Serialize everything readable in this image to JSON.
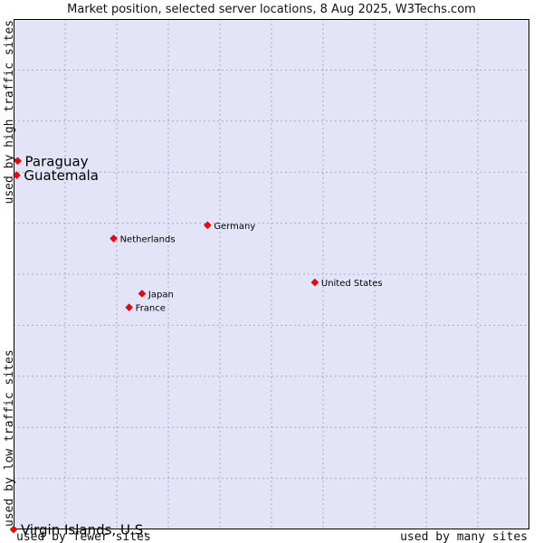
{
  "chart_data": {
    "type": "scatter",
    "title": "Market position, selected server locations, 8 Aug 2025, W3Techs.com",
    "xlabel_left": "used by fewer sites",
    "xlabel_right": "used by many sites",
    "ylabel_bottom": "used by low traffic sites",
    "ylabel_top": "used by high traffic sites",
    "xlim": [
      0,
      100
    ],
    "ylim": [
      0,
      100
    ],
    "grid": true,
    "colors": {
      "plot_background": "#e4e4f8",
      "grid": "#a8a8c4",
      "border": "#000000",
      "point": "#ff0000",
      "point_outline": "#990000"
    },
    "points": [
      {
        "label": "Paraguay",
        "x": 0.8,
        "y": 72.2,
        "emphasis": true
      },
      {
        "label": "Guatemala",
        "x": 0.6,
        "y": 69.4,
        "emphasis": true
      },
      {
        "label": "Germany",
        "x": 37.6,
        "y": 59.6,
        "emphasis": false
      },
      {
        "label": "Netherlands",
        "x": 19.4,
        "y": 57.0,
        "emphasis": false
      },
      {
        "label": "United States",
        "x": 58.4,
        "y": 48.4,
        "emphasis": false
      },
      {
        "label": "Japan",
        "x": 24.9,
        "y": 46.2,
        "emphasis": false
      },
      {
        "label": "France",
        "x": 22.4,
        "y": 43.5,
        "emphasis": false
      },
      {
        "label": "Virgin Islands, U.S.",
        "x": 0.0,
        "y": 0.0,
        "emphasis": true
      }
    ]
  }
}
